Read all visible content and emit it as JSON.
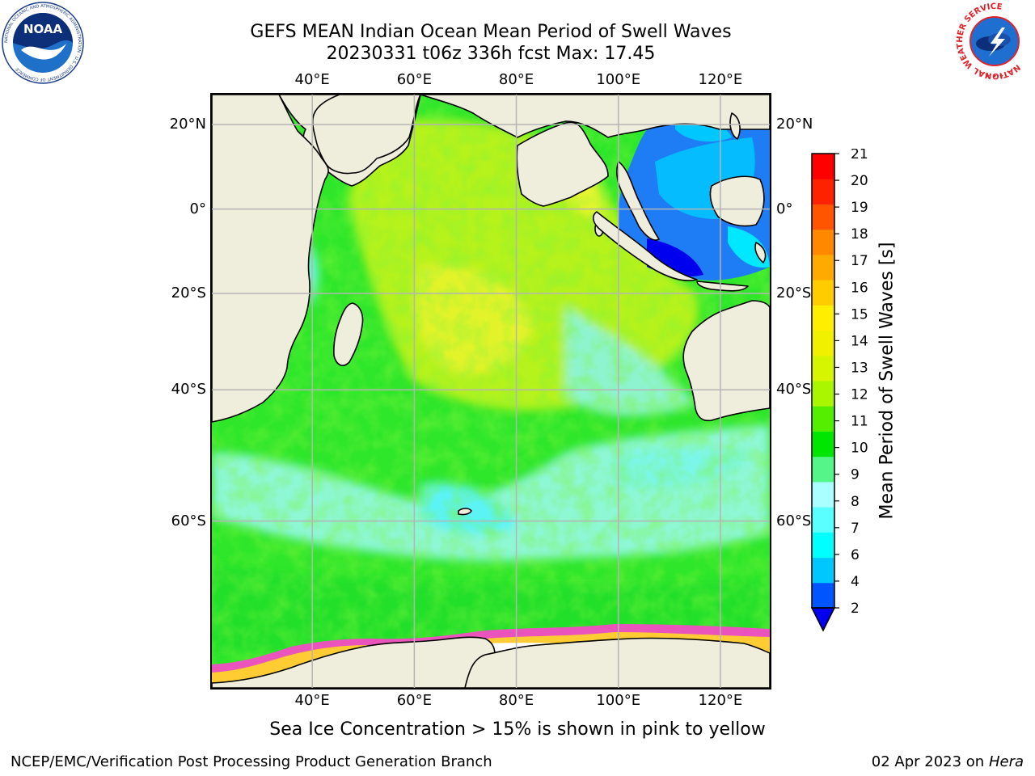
{
  "title": {
    "line1": "GEFS MEAN Indian Ocean Mean Period of Swell Waves",
    "line2": "20230331 t06z 336h fcst   Max: 17.45"
  },
  "map": {
    "lon_ticks": [
      "40°E",
      "60°E",
      "80°E",
      "100°E",
      "120°E"
    ],
    "lat_ticks": [
      "20°N",
      "0°",
      "20°S",
      "40°S",
      "60°S"
    ],
    "extent": {
      "lon": [
        20,
        130
      ],
      "lat": [
        -75,
        27
      ]
    }
  },
  "colorbar": {
    "label": "Mean Period of Swell Waves [s]",
    "ticks": [
      "2",
      "4",
      "6",
      "7",
      "8",
      "9",
      "10",
      "11",
      "12",
      "13",
      "14",
      "15",
      "16",
      "17",
      "18",
      "19",
      "20",
      "21"
    ],
    "colors": [
      "#0055ff",
      "#00c8ff",
      "#00ffff",
      "#5affff",
      "#aaffff",
      "#55f58a",
      "#00e600",
      "#55ee00",
      "#aaf500",
      "#d6f500",
      "#f0f000",
      "#ffee00",
      "#ffcc00",
      "#ffaa00",
      "#ff8800",
      "#ff5500",
      "#ff2200",
      "#ff0000"
    ],
    "extend_color": "#0000ee"
  },
  "caption": "Sea Ice Concentration > 15% is shown in pink to yellow",
  "footer": {
    "left": "NCEP/EMC/Verification Post Processing Product Generation Branch",
    "right_date": "02 Apr 2023 on ",
    "right_host": "Hera"
  },
  "logos": {
    "noaa": {
      "text": "NOAA",
      "ring": "NATIONAL OCEANIC AND ATMOSPHERIC ADMINISTRATION · U.S. DEPARTMENT OF COMMERCE"
    },
    "nws": {
      "ring": "NATIONAL WEATHER SERVICE"
    }
  },
  "colors": {
    "land": "#efeedd",
    "grid": "#b4b4b4",
    "sea_ice_pink": "#ff44cc",
    "sea_ice_yellow": "#ffcc33"
  }
}
